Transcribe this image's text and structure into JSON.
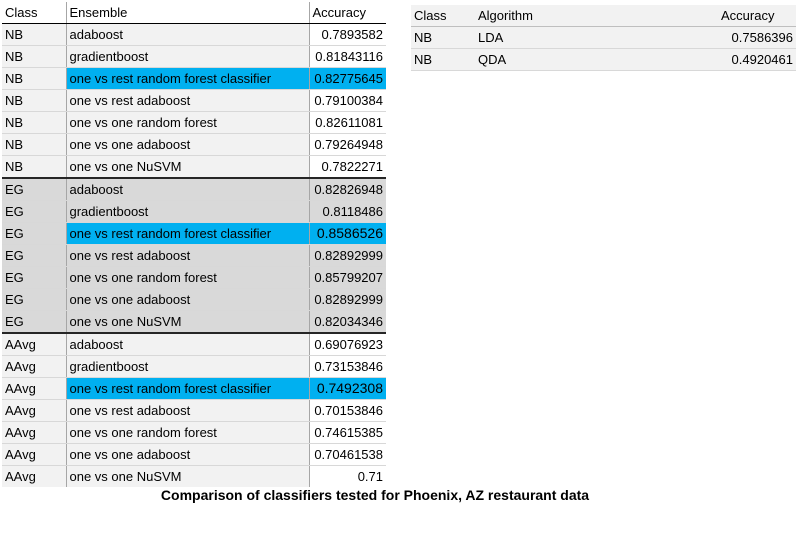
{
  "ensemble_table": {
    "headers": [
      "Class",
      "Ensemble",
      "Accuracy"
    ],
    "rows": [
      {
        "class": "NB",
        "ensemble": "adaboost",
        "accuracy": "0.7893582"
      },
      {
        "class": "NB",
        "ensemble": "gradientboost",
        "accuracy": "0.81843116"
      },
      {
        "class": "NB",
        "ensemble": "one vs rest random forest classifier",
        "accuracy": "0.82775645",
        "highlight": true
      },
      {
        "class": "NB",
        "ensemble": "one vs rest adaboost",
        "accuracy": "0.79100384"
      },
      {
        "class": "NB",
        "ensemble": "one vs one random forest",
        "accuracy": "0.82611081"
      },
      {
        "class": "NB",
        "ensemble": "one vs one adaboost",
        "accuracy": "0.79264948"
      },
      {
        "class": "NB",
        "ensemble": "one vs one NuSVM",
        "accuracy": "0.7822271"
      },
      {
        "class": "EG",
        "ensemble": "adaboost",
        "accuracy": "0.82826948"
      },
      {
        "class": "EG",
        "ensemble": "gradientboost",
        "accuracy": "0.8118486"
      },
      {
        "class": "EG",
        "ensemble": "one vs rest random forest classifier",
        "accuracy": "0.8586526",
        "highlight": true
      },
      {
        "class": "EG",
        "ensemble": "one vs rest adaboost",
        "accuracy": "0.82892999"
      },
      {
        "class": "EG",
        "ensemble": "one vs one random forest",
        "accuracy": "0.85799207"
      },
      {
        "class": "EG",
        "ensemble": "one vs one adaboost",
        "accuracy": "0.82892999"
      },
      {
        "class": "EG",
        "ensemble": "one vs one NuSVM",
        "accuracy": "0.82034346"
      },
      {
        "class": "AAvg",
        "ensemble": "adaboost",
        "accuracy": "0.69076923"
      },
      {
        "class": "AAvg",
        "ensemble": "gradientboost",
        "accuracy": "0.73153846"
      },
      {
        "class": "AAvg",
        "ensemble": "one vs rest random forest classifier",
        "accuracy": "0.7492308",
        "highlight": true
      },
      {
        "class": "AAvg",
        "ensemble": "one vs rest adaboost",
        "accuracy": "0.70153846"
      },
      {
        "class": "AAvg",
        "ensemble": "one vs one random forest",
        "accuracy": "0.74615385"
      },
      {
        "class": "AAvg",
        "ensemble": "one vs one adaboost",
        "accuracy": "0.70461538"
      },
      {
        "class": "AAvg",
        "ensemble": "one vs one NuSVM",
        "accuracy": "0.71"
      }
    ]
  },
  "algorithm_table": {
    "headers": [
      "Class",
      "Algorithm",
      "Accuracy"
    ],
    "rows": [
      {
        "class": "NB",
        "algorithm": "LDA",
        "accuracy": "0.7586396"
      },
      {
        "class": "NB",
        "algorithm": "QDA",
        "accuracy": "0.4920461"
      }
    ]
  },
  "caption": "Comparison of classifiers tested for Phoenix, AZ restaurant data",
  "colors": {
    "highlight": "#00b0f0",
    "group_gray": "#d9d9d9",
    "group_light": "#f2f2f2"
  }
}
